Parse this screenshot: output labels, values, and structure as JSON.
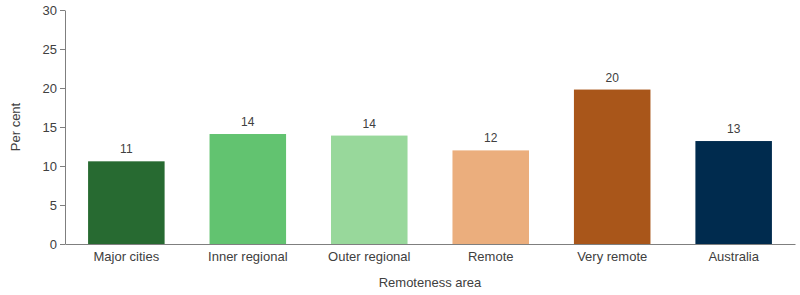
{
  "chart_data": {
    "type": "bar",
    "x_label": "Remoteness area",
    "y_label": "Per cent",
    "categories": [
      "Major cities",
      "Inner regional",
      "Outer regional",
      "Remote",
      "Very remote",
      "Australia"
    ],
    "values": [
      10.6,
      14.1,
      13.9,
      12.0,
      19.8,
      13.2
    ],
    "value_labels": [
      "11",
      "14",
      "14",
      "12",
      "20",
      "13"
    ],
    "data_labels": true,
    "colors": [
      "#276a31",
      "#62c370",
      "#98d89b",
      "#ebae7d",
      "#a9561a",
      "#002b4e"
    ],
    "ylim": [
      0,
      30
    ],
    "yticks": [
      0,
      5,
      10,
      15,
      20,
      25,
      30
    ],
    "grid": false
  }
}
